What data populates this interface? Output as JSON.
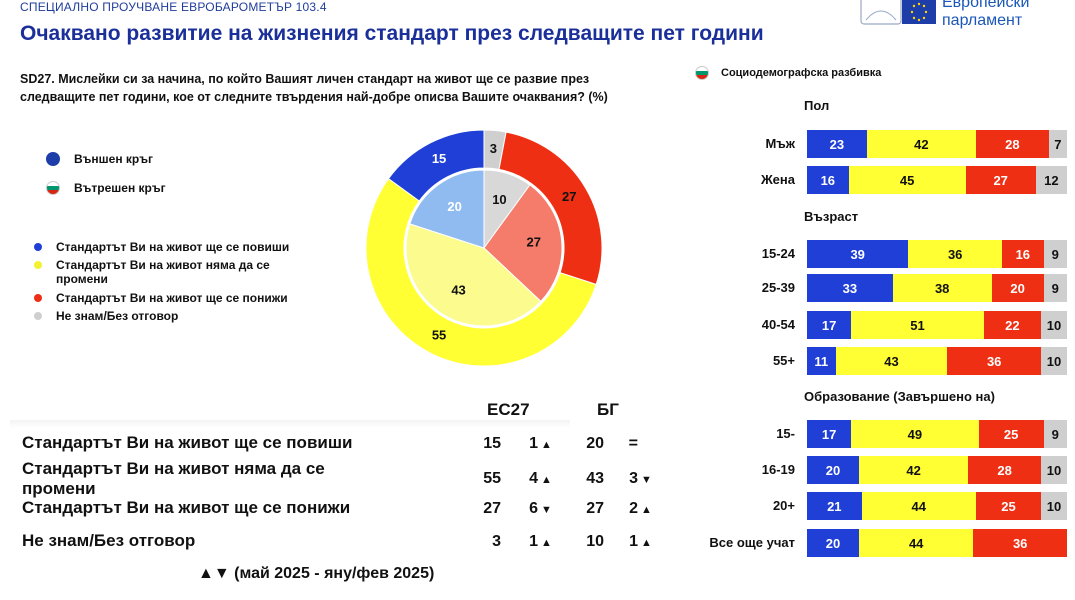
{
  "header": {
    "caption": "СПЕЦИАЛНО ПРОУЧВАНЕ ЕВРОБАРОМЕТЪР 103.4",
    "title": "Очаквано развитие на жизнения стандарт през следващите пет години",
    "logo_line1": "Европейски",
    "logo_line2": "парламент"
  },
  "question": "SD27. Мислейки си за начина, по който Вашият личен стандарт на живот ще се развие през следващите пет години, кое от следните твърдения най-добре описва Вашите очаквания? (%)",
  "ring_legend": {
    "outer": "Външен кръг",
    "inner": "Вътрешен кръг"
  },
  "colors": {
    "blue": "#1f3fd6",
    "yellow": "#ffff33",
    "red": "#ef2f14",
    "grey": "#cfcfcf",
    "inner_blue": "#8fbbf0",
    "inner_yellow": "#fbfb8e",
    "inner_red": "#f57b6a",
    "inner_grey": "#d8d8d8"
  },
  "answers": [
    {
      "label": "Стандартът Ви на живот ще се повиши",
      "color": "#1f3fd6"
    },
    {
      "label": "Стандартът Ви на живот няма да се промени",
      "color": "#ffff33"
    },
    {
      "label": "Стандартът Ви на живот ще се понижи",
      "color": "#ef2f14"
    },
    {
      "label": "Не знам/Без отговор",
      "color": "#cfcfcf"
    }
  ],
  "table": {
    "col_eu": "ЕС27",
    "col_bg": "БГ",
    "rows": [
      {
        "label": "Стандартът Ви на живот ще се повиши",
        "eu": "15",
        "eu_change": "1",
        "eu_dir": "▲",
        "bg": "20",
        "bg_change": "=",
        "bg_dir": ""
      },
      {
        "label": "Стандартът Ви на живот няма да се промени",
        "eu": "55",
        "eu_change": "4",
        "eu_dir": "▲",
        "bg": "43",
        "bg_change": "3",
        "bg_dir": "▼"
      },
      {
        "label": "Стандартът Ви на живот ще се понижи",
        "eu": "27",
        "eu_change": "6",
        "eu_dir": "▼",
        "bg": "27",
        "bg_change": "2",
        "bg_dir": "▲"
      },
      {
        "label": "Не знам/Без отговор",
        "eu": "3",
        "eu_change": "1",
        "eu_dir": "▲",
        "bg": "10",
        "bg_change": "1",
        "bg_dir": "▲"
      }
    ],
    "footnote": "▲▼ (май 2025 - яну/фев 2025)"
  },
  "breakdown_legend": "Социодемографска разбивка",
  "chart_data": [
    {
      "type": "pie",
      "ring": "outer",
      "categories": [
        "Стандартът Ви на живот ще се повиши",
        "Стандартът Ви на живот няма да се промени",
        "Стандартът Ви на живот ще се понижи",
        "Не знам/Без отговор"
      ],
      "values": [
        15,
        55,
        27,
        3
      ]
    },
    {
      "type": "pie",
      "ring": "inner",
      "categories": [
        "Стандартът Ви на живот ще се повиши",
        "Стандартът Ви на живот няма да се промени",
        "Стандартът Ви на живот ще се понижи",
        "Не знам/Без отговор"
      ],
      "values": [
        20,
        43,
        27,
        10
      ]
    },
    {
      "type": "bar",
      "orientation": "horizontal",
      "stacked": true,
      "groups": [
        {
          "title": "Пол",
          "rows": [
            {
              "label": "Мъж",
              "values": [
                23,
                42,
                28,
                7
              ]
            },
            {
              "label": "Жена",
              "values": [
                16,
                45,
                27,
                12
              ]
            }
          ]
        },
        {
          "title": "Възраст",
          "rows": [
            {
              "label": "15-24",
              "values": [
                39,
                36,
                16,
                9
              ]
            },
            {
              "label": "25-39",
              "values": [
                33,
                38,
                20,
                9
              ]
            },
            {
              "label": "40-54",
              "values": [
                17,
                51,
                22,
                10
              ]
            },
            {
              "label": "55+",
              "values": [
                11,
                43,
                36,
                10
              ]
            }
          ]
        },
        {
          "title": "Образование (Завършено на)",
          "rows": [
            {
              "label": "15-",
              "values": [
                17,
                49,
                25,
                9
              ]
            },
            {
              "label": "16-19",
              "values": [
                20,
                42,
                28,
                10
              ]
            },
            {
              "label": "20+",
              "values": [
                21,
                44,
                25,
                10
              ]
            },
            {
              "label": "Все още учат",
              "values": [
                20,
                44,
                36,
                0
              ]
            }
          ]
        }
      ]
    }
  ]
}
